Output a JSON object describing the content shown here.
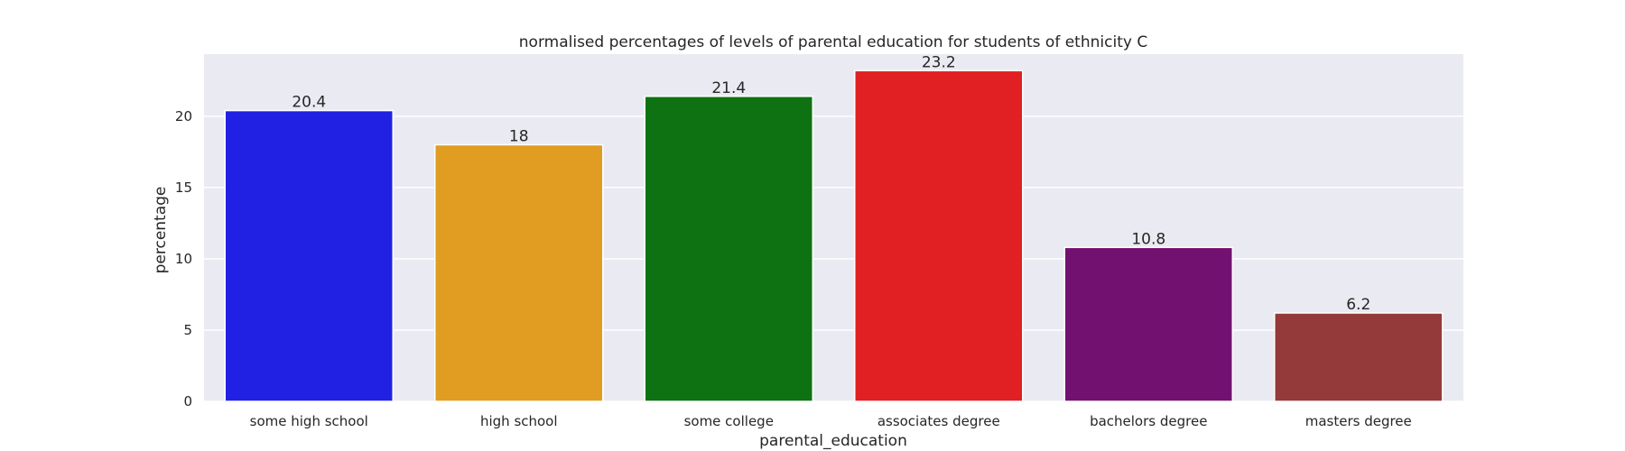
{
  "chart_data": {
    "type": "bar",
    "title": "normalised percentages of levels of parental education for students of ethnicity C",
    "xlabel": "parental_education",
    "ylabel": "percentage",
    "categories": [
      "some high school",
      "high school",
      "some college",
      "associates degree",
      "bachelors degree",
      "masters degree"
    ],
    "values": [
      20.4,
      18,
      21.4,
      23.2,
      10.8,
      6.2
    ],
    "value_labels": [
      "20.4",
      "18",
      "21.4",
      "23.2",
      "10.8",
      "6.2"
    ],
    "colors": [
      "#2121e3",
      "#e09d22",
      "#0f7212",
      "#e02022",
      "#731170",
      "#953a3a"
    ],
    "yticks": [
      0,
      5,
      10,
      15,
      20
    ],
    "ylim": [
      0,
      24.36
    ],
    "grid": true,
    "legend": "none",
    "background": "#eaeaf2"
  }
}
